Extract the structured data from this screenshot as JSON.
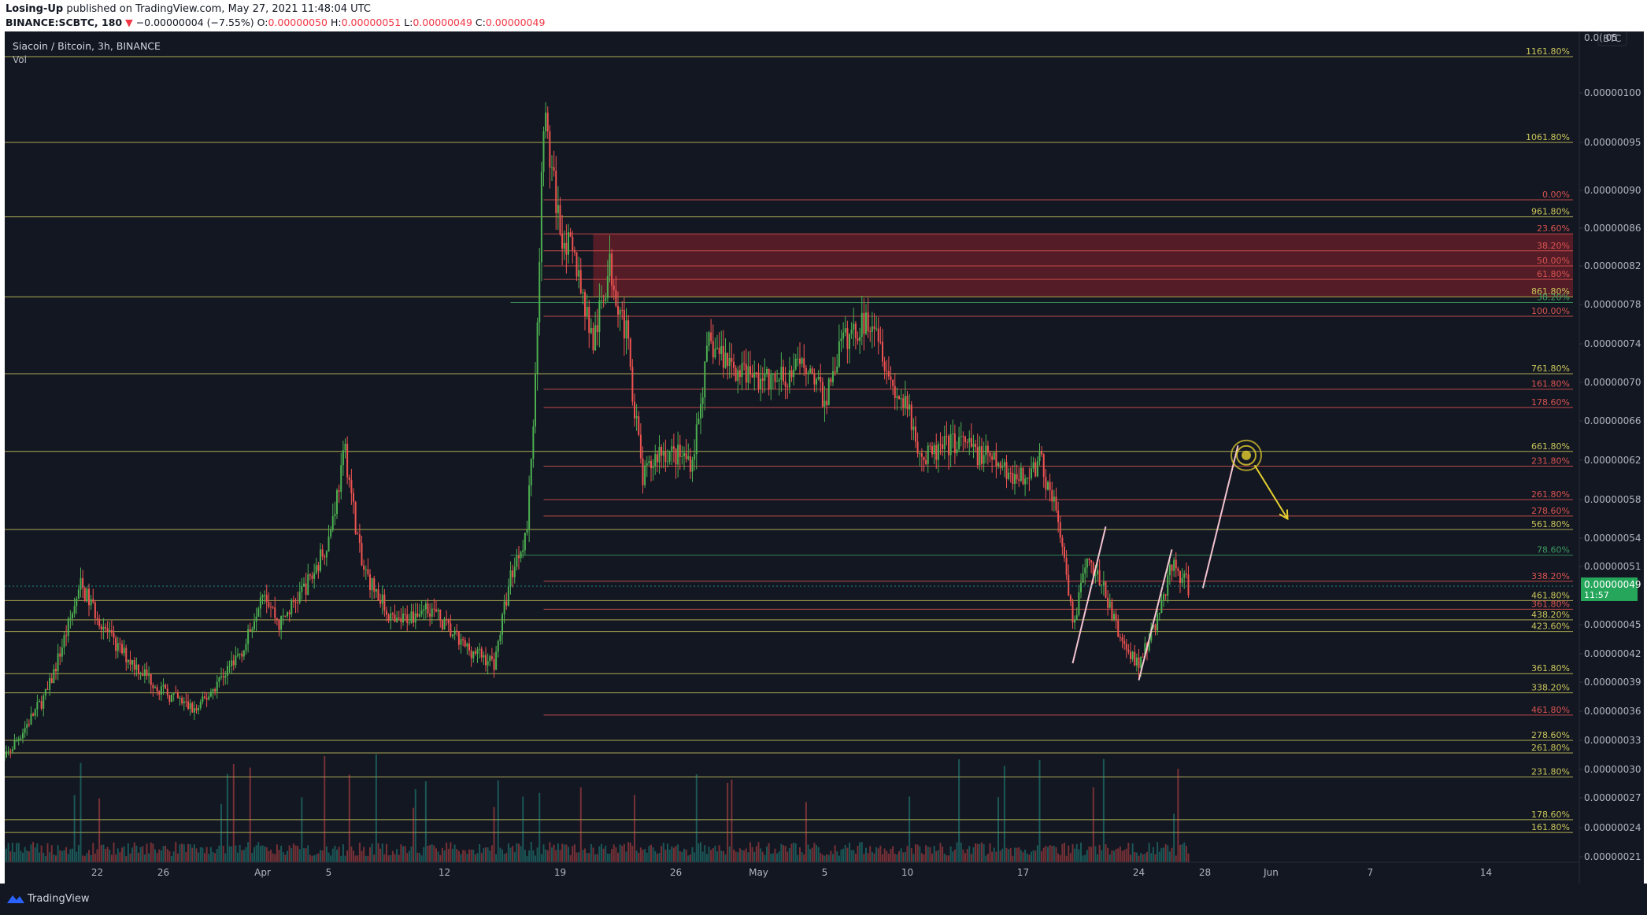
{
  "header": {
    "author": "Losing-Up",
    "published": "published on TradingView.com, May 27, 2021 11:48:04 UTC",
    "ticker": "BINANCE:SCBTC, 180",
    "change_arrow": "▼",
    "change": "−0.00000004 (−7.55%)",
    "o_label": "O:",
    "o_value": "0.00000050",
    "h_label": "H:",
    "h_value": "0.00000051",
    "l_label": "L:",
    "l_value": "0.00000049",
    "c_label": "C:",
    "c_value": "0.00000049"
  },
  "footer": {
    "brand": "TradingView"
  },
  "colors": {
    "background": "#131722",
    "up": "#26a69a",
    "down": "#ef5350",
    "up_bright": "#4caf50",
    "fib_yellow": "#c9c55a",
    "fib_red": "#d9534f",
    "zone": "#6b1f2a",
    "last_price": "#26a65b",
    "arrow": "#e6d030",
    "trend": "#f3c4d0"
  },
  "chart_data": {
    "type": "candlestick",
    "title": "Siacoin / Bitcoin, 3h, BINANCE",
    "volume_label": "Vol",
    "price_unit": "BTC",
    "y_range": [
      2e-07,
      1.06e-06
    ],
    "y_ticks": [
      "0.00000100",
      "0.00000095",
      "0.00000090",
      "0.00000086",
      "0.00000082",
      "0.00000078",
      "0.00000074",
      "0.00000070",
      "0.00000066",
      "0.00000062",
      "0.00000058",
      "0.00000054",
      "0.00000051",
      "0.00000045",
      "0.00000042",
      "0.00000039",
      "0.00000036",
      "0.00000033",
      "0.00000030",
      "0.00000027",
      "0.00000024",
      "0.00000021"
    ],
    "top_tick_partial": "0.0( 05",
    "x_ticks": [
      "22",
      "26",
      "Apr",
      "5",
      "12",
      "19",
      "26",
      "May",
      "5",
      "10",
      "17",
      "24",
      "28",
      "Jun",
      "7",
      "14"
    ],
    "last_price": "0.00000049",
    "countdown": "11:57",
    "price_path": [
      {
        "date": "2021-03-16",
        "price": 3e-07
      },
      {
        "date": "2021-03-19",
        "price": 3.8e-07
      },
      {
        "date": "2021-03-21",
        "price": 4.9e-07
      },
      {
        "date": "2021-03-23",
        "price": 4.3e-07
      },
      {
        "date": "2021-03-26",
        "price": 3.8e-07
      },
      {
        "date": "2021-03-28",
        "price": 3.6e-07
      },
      {
        "date": "2021-03-31",
        "price": 4.3e-07
      },
      {
        "date": "2021-04-01",
        "price": 4.9e-07
      },
      {
        "date": "2021-04-02",
        "price": 4.5e-07
      },
      {
        "date": "2021-04-04",
        "price": 5e-07
      },
      {
        "date": "2021-04-05",
        "price": 5.4e-07
      },
      {
        "date": "2021-04-06",
        "price": 6.3e-07
      },
      {
        "date": "2021-04-07",
        "price": 5.1e-07
      },
      {
        "date": "2021-04-09",
        "price": 4.5e-07
      },
      {
        "date": "2021-04-11",
        "price": 4.7e-07
      },
      {
        "date": "2021-04-13",
        "price": 4.3e-07
      },
      {
        "date": "2021-04-15",
        "price": 4.1e-07
      },
      {
        "date": "2021-04-16",
        "price": 5e-07
      },
      {
        "date": "2021-04-17",
        "price": 5.5e-07
      },
      {
        "date": "2021-04-17T12",
        "price": 7e-07
      },
      {
        "date": "2021-04-18",
        "price": 9.8e-07
      },
      {
        "date": "2021-04-19",
        "price": 8.6e-07
      },
      {
        "date": "2021-04-20",
        "price": 8.2e-07
      },
      {
        "date": "2021-04-21",
        "price": 7.4e-07
      },
      {
        "date": "2021-04-22",
        "price": 8.2e-07
      },
      {
        "date": "2021-04-23",
        "price": 7.5e-07
      },
      {
        "date": "2021-04-24",
        "price": 6e-07
      },
      {
        "date": "2021-04-25",
        "price": 6.3e-07
      },
      {
        "date": "2021-04-27",
        "price": 6.2e-07
      },
      {
        "date": "2021-04-28",
        "price": 7.4e-07
      },
      {
        "date": "2021-04-30",
        "price": 7.1e-07
      },
      {
        "date": "2021-05-02",
        "price": 7e-07
      },
      {
        "date": "2021-05-04",
        "price": 7.2e-07
      },
      {
        "date": "2021-05-05",
        "price": 6.8e-07
      },
      {
        "date": "2021-05-06",
        "price": 7.4e-07
      },
      {
        "date": "2021-05-08",
        "price": 7.7e-07
      },
      {
        "date": "2021-05-09",
        "price": 7e-07
      },
      {
        "date": "2021-05-10",
        "price": 6.7e-07
      },
      {
        "date": "2021-05-11",
        "price": 6.2e-07
      },
      {
        "date": "2021-05-13",
        "price": 6.4e-07
      },
      {
        "date": "2021-05-15",
        "price": 6.2e-07
      },
      {
        "date": "2021-05-17",
        "price": 6e-07
      },
      {
        "date": "2021-05-18",
        "price": 6.2e-07
      },
      {
        "date": "2021-05-19",
        "price": 5.7e-07
      },
      {
        "date": "2021-05-20",
        "price": 4.5e-07
      },
      {
        "date": "2021-05-21",
        "price": 5.2e-07
      },
      {
        "date": "2021-05-22",
        "price": 4.8e-07
      },
      {
        "date": "2021-05-23",
        "price": 4.3e-07
      },
      {
        "date": "2021-05-24",
        "price": 4.1e-07
      },
      {
        "date": "2021-05-25",
        "price": 4.5e-07
      },
      {
        "date": "2021-05-26",
        "price": 5.1e-07
      },
      {
        "date": "2021-05-27",
        "price": 4.9e-07
      }
    ],
    "fib_levels": [
      {
        "label": "1161.80%",
        "price": 1.04e-06,
        "color": "yellow",
        "start": "2021-03-16"
      },
      {
        "label": "1061.80%",
        "price": 9.5e-07,
        "color": "yellow",
        "start": "2021-03-16"
      },
      {
        "label": "0.00%",
        "price": 8.9e-07,
        "color": "red",
        "start": "2021-04-18"
      },
      {
        "label": "23.60%",
        "price": 8.54e-07,
        "color": "red",
        "start": "2021-04-18"
      },
      {
        "label": "961.80%",
        "price": 8.72e-07,
        "color": "yellow",
        "start": "2021-03-16"
      },
      {
        "label": "38.20%",
        "price": 8.36e-07,
        "color": "red",
        "start": "2021-04-18"
      },
      {
        "label": "50.00%",
        "price": 8.2e-07,
        "color": "red",
        "start": "2021-04-18"
      },
      {
        "label": "61.80%",
        "price": 8.06e-07,
        "color": "red",
        "start": "2021-04-18"
      },
      {
        "label": "861.80%",
        "price": 7.88e-07,
        "color": "yellow",
        "start": "2021-03-16"
      },
      {
        "label": "38.20%",
        "price": 7.82e-07,
        "color": "green",
        "start": "2021-04-16"
      },
      {
        "label": "100.00%",
        "price": 7.68e-07,
        "color": "red",
        "start": "2021-04-18"
      },
      {
        "label": "761.80%",
        "price": 7.09e-07,
        "color": "yellow",
        "start": "2021-03-16"
      },
      {
        "label": "161.80%",
        "price": 6.93e-07,
        "color": "red",
        "start": "2021-04-18"
      },
      {
        "label": "178.60%",
        "price": 6.74e-07,
        "color": "red",
        "start": "2021-04-18"
      },
      {
        "label": "661.80%",
        "price": 6.29e-07,
        "color": "yellow",
        "start": "2021-03-16"
      },
      {
        "label": "231.80%",
        "price": 6.14e-07,
        "color": "red",
        "start": "2021-04-18"
      },
      {
        "label": "261.80%",
        "price": 5.8e-07,
        "color": "red",
        "start": "2021-04-18"
      },
      {
        "label": "278.60%",
        "price": 5.63e-07,
        "color": "red",
        "start": "2021-04-18"
      },
      {
        "label": "561.80%",
        "price": 5.49e-07,
        "color": "yellow",
        "start": "2021-03-16"
      },
      {
        "label": "78.60%",
        "price": 5.22e-07,
        "color": "green",
        "start": "2021-04-16"
      },
      {
        "label": "338.20%",
        "price": 4.95e-07,
        "color": "red",
        "start": "2021-04-18"
      },
      {
        "label": "461.80%",
        "price": 4.75e-07,
        "color": "yellow",
        "start": "2021-03-16"
      },
      {
        "label": "361.80%",
        "price": 4.66e-07,
        "color": "red",
        "start": "2021-04-18"
      },
      {
        "label": "438.20%",
        "price": 4.55e-07,
        "color": "yellow",
        "start": "2021-03-16"
      },
      {
        "label": "423.60%",
        "price": 4.43e-07,
        "color": "yellow",
        "start": "2021-03-16"
      },
      {
        "label": "361.80%",
        "price": 3.99e-07,
        "color": "yellow",
        "start": "2021-03-16"
      },
      {
        "label": "338.20%",
        "price": 3.79e-07,
        "color": "yellow",
        "start": "2021-03-16"
      },
      {
        "label": "461.80%",
        "price": 3.56e-07,
        "color": "red",
        "start": "2021-04-18"
      },
      {
        "label": "278.60%",
        "price": 3.3e-07,
        "color": "yellow",
        "start": "2021-03-16"
      },
      {
        "label": "261.80%",
        "price": 3.17e-07,
        "color": "yellow",
        "start": "2021-03-16"
      },
      {
        "label": "231.80%",
        "price": 2.92e-07,
        "color": "yellow",
        "start": "2021-03-16"
      },
      {
        "label": "178.60%",
        "price": 2.48e-07,
        "color": "yellow",
        "start": "2021-03-16"
      },
      {
        "label": "161.80%",
        "price": 2.35e-07,
        "color": "yellow",
        "start": "2021-03-16"
      }
    ],
    "zone": {
      "from_price": 7.88e-07,
      "to_price": 8.54e-07,
      "start": "2021-04-21"
    },
    "annotations": [
      {
        "type": "trend-line",
        "from": {
          "date": "2021-05-20",
          "price": 4.1e-07
        },
        "to": {
          "date": "2021-05-22",
          "price": 5.52e-07
        }
      },
      {
        "type": "trend-line",
        "from": {
          "date": "2021-05-24",
          "price": 3.92e-07
        },
        "to": {
          "date": "2021-05-26",
          "price": 5.28e-07
        }
      },
      {
        "type": "trend-line",
        "from": {
          "date": "2021-05-27T21",
          "price": 4.88e-07
        },
        "to": {
          "date": "2021-05-30",
          "price": 6.35e-07
        }
      },
      {
        "type": "target-circle",
        "date": "2021-05-30T12",
        "price": 6.25e-07
      },
      {
        "type": "arrow",
        "from": {
          "date": "2021-05-31",
          "price": 6.15e-07
        },
        "to": {
          "date": "2021-06-02",
          "price": 5.6e-07
        }
      }
    ],
    "volume_scale_note": "relative"
  }
}
